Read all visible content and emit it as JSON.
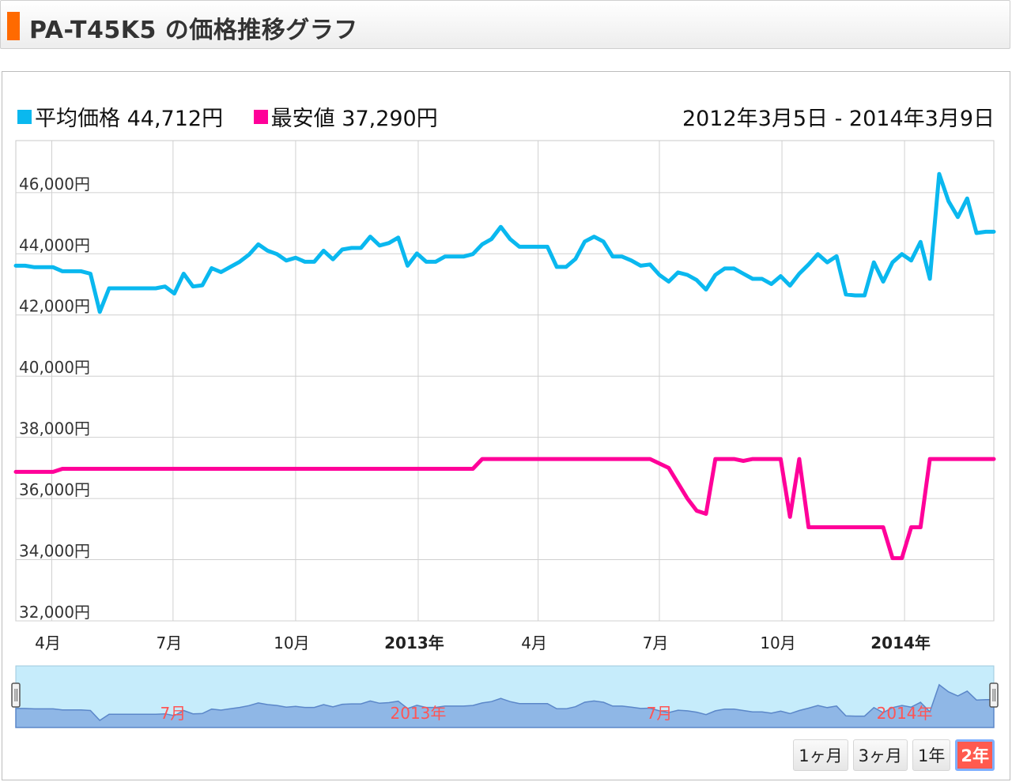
{
  "header": {
    "title": "PA-T45K5 の価格推移グラフ"
  },
  "legend": {
    "avg": {
      "label": "平均価格",
      "value": "44,712円",
      "color": "#0ab8ef"
    },
    "min": {
      "label": "最安値",
      "value": "37,290円",
      "color": "#ff0099"
    }
  },
  "date_range": "2012年3月5日 - 2014年3月9日",
  "range_buttons": [
    {
      "label": "1ヶ月",
      "active": false
    },
    {
      "label": "3ヶ月",
      "active": false
    },
    {
      "label": "1年",
      "active": false
    },
    {
      "label": "2年",
      "active": true
    }
  ],
  "chart_data": {
    "type": "line",
    "x_range": [
      "2012-03-05",
      "2014-03-09"
    ],
    "ylim": [
      32000,
      47700
    ],
    "yticks": [
      {
        "value": 32000,
        "label": "32,000円"
      },
      {
        "value": 34000,
        "label": "34,000円"
      },
      {
        "value": 36000,
        "label": "36,000円"
      },
      {
        "value": 38000,
        "label": "38,000円"
      },
      {
        "value": 40000,
        "label": "40,000円"
      },
      {
        "value": 42000,
        "label": "42,000円"
      },
      {
        "value": 44000,
        "label": "44,000円"
      },
      {
        "value": 46000,
        "label": "46,000円"
      }
    ],
    "xticks": [
      {
        "date": "2012-04-01",
        "label": "4月",
        "bold": false
      },
      {
        "date": "2012-07-01",
        "label": "7月",
        "bold": false
      },
      {
        "date": "2012-10-01",
        "label": "10月",
        "bold": false
      },
      {
        "date": "2013-01-01",
        "label": "2013年",
        "bold": true
      },
      {
        "date": "2013-04-01",
        "label": "4月",
        "bold": false
      },
      {
        "date": "2013-07-01",
        "label": "7月",
        "bold": false
      },
      {
        "date": "2013-10-01",
        "label": "10月",
        "bold": false
      },
      {
        "date": "2014-01-01",
        "label": "2014年",
        "bold": true
      }
    ],
    "navigator_labels": [
      {
        "date": "2012-07-01",
        "label": "7月"
      },
      {
        "date": "2013-01-01",
        "label": "2013年"
      },
      {
        "date": "2013-07-01",
        "label": "7月"
      },
      {
        "date": "2014-01-01",
        "label": "2014年"
      }
    ],
    "grid": true,
    "series": [
      {
        "name": "平均価格",
        "color": "#0ab8ef",
        "points": [
          [
            "2012-03-05",
            43610
          ],
          [
            "2012-03-12",
            43610
          ],
          [
            "2012-03-19",
            43560
          ],
          [
            "2012-03-26",
            43560
          ],
          [
            "2012-04-02",
            43560
          ],
          [
            "2012-04-09",
            43430
          ],
          [
            "2012-04-16",
            43430
          ],
          [
            "2012-04-23",
            43430
          ],
          [
            "2012-04-30",
            43350
          ],
          [
            "2012-05-07",
            42100
          ],
          [
            "2012-05-14",
            42870
          ],
          [
            "2012-05-21",
            42870
          ],
          [
            "2012-05-28",
            42870
          ],
          [
            "2012-06-04",
            42870
          ],
          [
            "2012-06-11",
            42870
          ],
          [
            "2012-06-18",
            42870
          ],
          [
            "2012-06-25",
            42930
          ],
          [
            "2012-07-02",
            42700
          ],
          [
            "2012-07-09",
            43350
          ],
          [
            "2012-07-16",
            42930
          ],
          [
            "2012-07-23",
            42970
          ],
          [
            "2012-07-30",
            43530
          ],
          [
            "2012-08-06",
            43400
          ],
          [
            "2012-08-13",
            43570
          ],
          [
            "2012-08-20",
            43740
          ],
          [
            "2012-08-27",
            43970
          ],
          [
            "2012-09-03",
            44310
          ],
          [
            "2012-09-10",
            44100
          ],
          [
            "2012-09-17",
            43990
          ],
          [
            "2012-09-24",
            43780
          ],
          [
            "2012-10-01",
            43870
          ],
          [
            "2012-10-08",
            43740
          ],
          [
            "2012-10-15",
            43740
          ],
          [
            "2012-10-22",
            44100
          ],
          [
            "2012-10-29",
            43820
          ],
          [
            "2012-11-05",
            44140
          ],
          [
            "2012-11-12",
            44190
          ],
          [
            "2012-11-19",
            44190
          ],
          [
            "2012-11-26",
            44560
          ],
          [
            "2012-12-03",
            44270
          ],
          [
            "2012-12-10",
            44350
          ],
          [
            "2012-12-17",
            44530
          ],
          [
            "2012-12-24",
            43610
          ],
          [
            "2012-12-31",
            44010
          ],
          [
            "2013-01-07",
            43740
          ],
          [
            "2013-01-14",
            43740
          ],
          [
            "2013-01-21",
            43910
          ],
          [
            "2013-01-28",
            43910
          ],
          [
            "2013-02-04",
            43910
          ],
          [
            "2013-02-11",
            43990
          ],
          [
            "2013-02-18",
            44310
          ],
          [
            "2013-02-25",
            44480
          ],
          [
            "2013-03-04",
            44880
          ],
          [
            "2013-03-11",
            44480
          ],
          [
            "2013-03-18",
            44230
          ],
          [
            "2013-03-25",
            44230
          ],
          [
            "2013-04-01",
            44230
          ],
          [
            "2013-04-08",
            44230
          ],
          [
            "2013-04-15",
            43570
          ],
          [
            "2013-04-22",
            43570
          ],
          [
            "2013-04-29",
            43830
          ],
          [
            "2013-05-06",
            44400
          ],
          [
            "2013-05-13",
            44560
          ],
          [
            "2013-05-20",
            44400
          ],
          [
            "2013-05-27",
            43910
          ],
          [
            "2013-06-03",
            43910
          ],
          [
            "2013-06-10",
            43780
          ],
          [
            "2013-06-17",
            43610
          ],
          [
            "2013-06-24",
            43650
          ],
          [
            "2013-07-01",
            43310
          ],
          [
            "2013-07-08",
            43090
          ],
          [
            "2013-07-15",
            43390
          ],
          [
            "2013-07-22",
            43310
          ],
          [
            "2013-07-29",
            43140
          ],
          [
            "2013-08-05",
            42830
          ],
          [
            "2013-08-12",
            43310
          ],
          [
            "2013-08-19",
            43520
          ],
          [
            "2013-08-26",
            43520
          ],
          [
            "2013-09-02",
            43350
          ],
          [
            "2013-09-09",
            43180
          ],
          [
            "2013-09-16",
            43180
          ],
          [
            "2013-09-23",
            43010
          ],
          [
            "2013-09-30",
            43270
          ],
          [
            "2013-10-07",
            42960
          ],
          [
            "2013-10-14",
            43350
          ],
          [
            "2013-10-21",
            43650
          ],
          [
            "2013-10-28",
            43990
          ],
          [
            "2013-11-04",
            43720
          ],
          [
            "2013-11-11",
            43920
          ],
          [
            "2013-11-18",
            42670
          ],
          [
            "2013-11-25",
            42640
          ],
          [
            "2013-12-02",
            42640
          ],
          [
            "2013-12-09",
            43720
          ],
          [
            "2013-12-16",
            43090
          ],
          [
            "2013-12-23",
            43720
          ],
          [
            "2013-12-30",
            43990
          ],
          [
            "2014-01-06",
            43780
          ],
          [
            "2014-01-13",
            44390
          ],
          [
            "2014-01-20",
            43180
          ],
          [
            "2014-01-27",
            46610
          ],
          [
            "2014-02-03",
            45720
          ],
          [
            "2014-02-10",
            45200
          ],
          [
            "2014-02-17",
            45810
          ],
          [
            "2014-02-24",
            44680
          ],
          [
            "2014-03-03",
            44720
          ],
          [
            "2014-03-09",
            44720
          ]
        ]
      },
      {
        "name": "最安値",
        "color": "#ff0099",
        "points": [
          [
            "2012-03-05",
            36870
          ],
          [
            "2012-03-26",
            36870
          ],
          [
            "2012-04-02",
            36870
          ],
          [
            "2012-04-09",
            36970
          ],
          [
            "2012-12-31",
            36970
          ],
          [
            "2013-01-28",
            36970
          ],
          [
            "2013-02-11",
            36970
          ],
          [
            "2013-02-18",
            37290
          ],
          [
            "2013-06-24",
            37290
          ],
          [
            "2013-07-08",
            37000
          ],
          [
            "2013-07-22",
            36000
          ],
          [
            "2013-07-29",
            35600
          ],
          [
            "2013-08-05",
            35500
          ],
          [
            "2013-08-12",
            37290
          ],
          [
            "2013-08-26",
            37290
          ],
          [
            "2013-09-02",
            37230
          ],
          [
            "2013-09-09",
            37290
          ],
          [
            "2013-09-30",
            37290
          ],
          [
            "2013-10-07",
            35400
          ],
          [
            "2013-10-14",
            37290
          ],
          [
            "2013-10-21",
            35060
          ],
          [
            "2013-11-25",
            35060
          ],
          [
            "2013-12-16",
            35060
          ],
          [
            "2013-12-23",
            34050
          ],
          [
            "2013-12-30",
            34050
          ],
          [
            "2014-01-06",
            35060
          ],
          [
            "2014-01-13",
            35060
          ],
          [
            "2014-01-20",
            37290
          ],
          [
            "2014-03-09",
            37290
          ]
        ]
      }
    ]
  }
}
